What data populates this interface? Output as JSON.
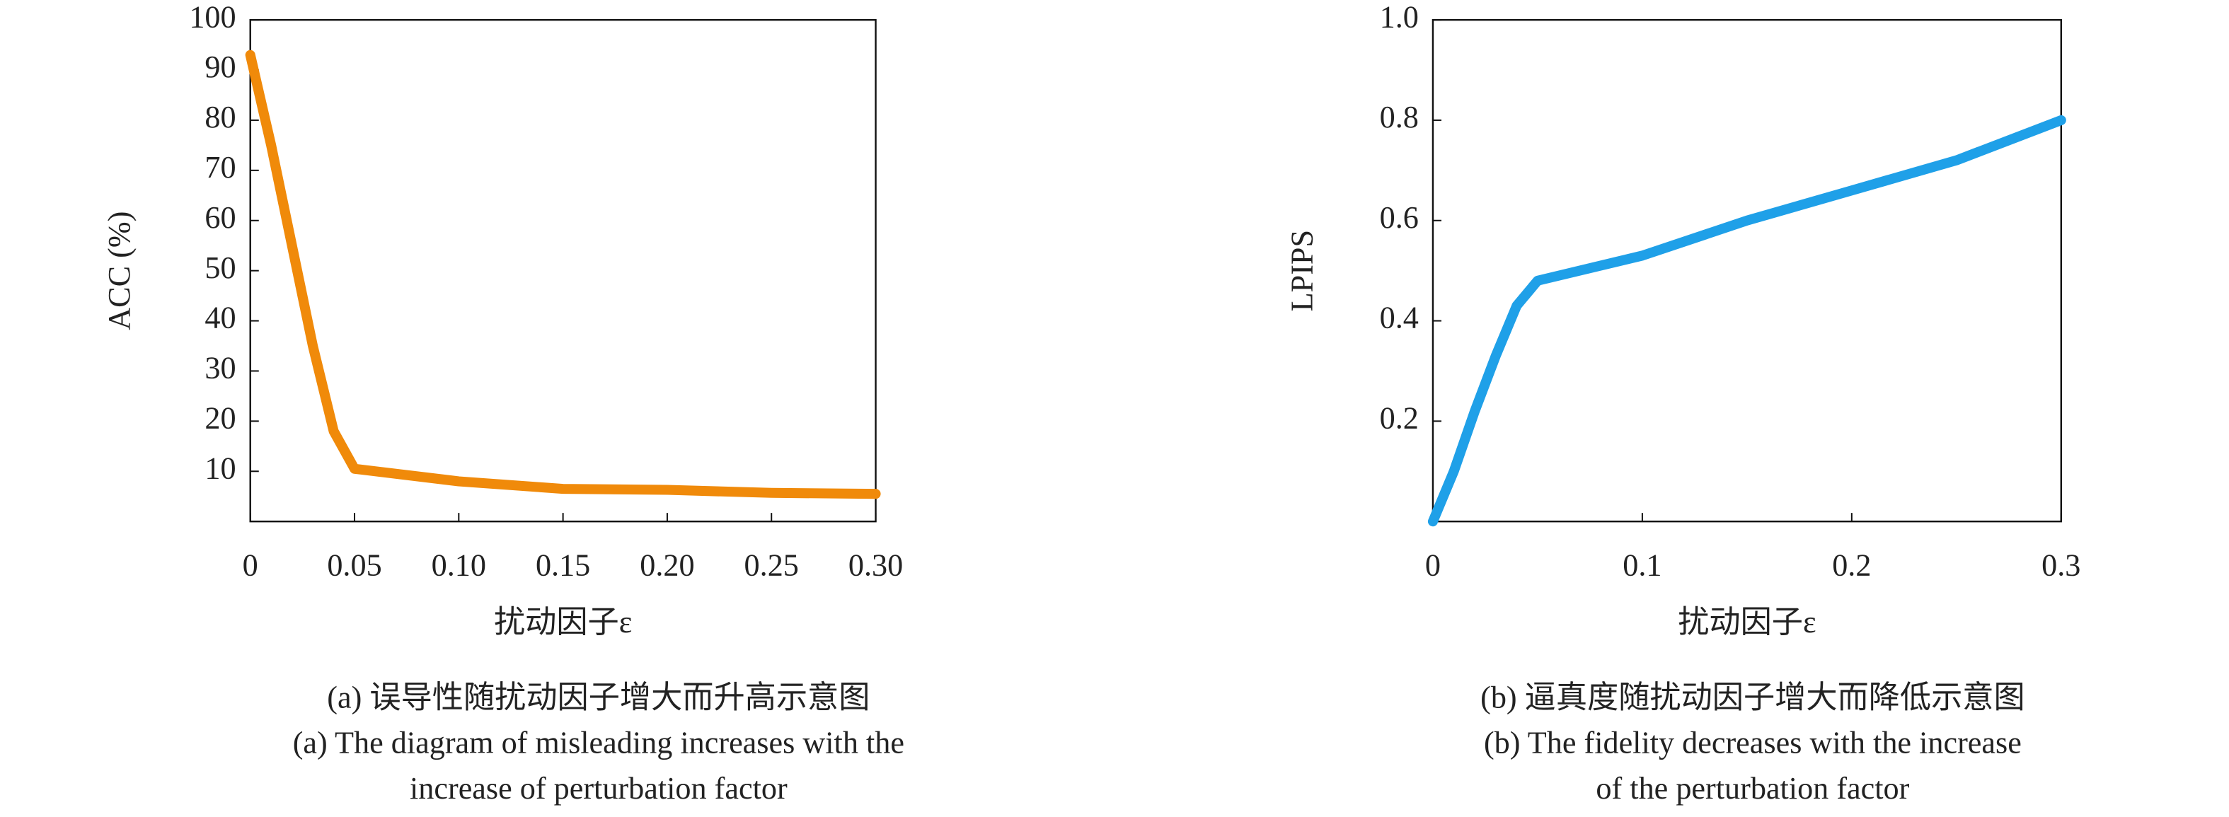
{
  "chart_data": [
    {
      "type": "line",
      "ylabel": "ACC (%)",
      "xlabel": "扰动因子ε",
      "caption": [
        "(a) 误导性随扰动因子增大而升高示意图",
        "(a) The diagram of misleading increases with the",
        "increase of perturbation factor"
      ],
      "x": [
        0,
        0.01,
        0.02,
        0.03,
        0.04,
        0.05,
        0.1,
        0.15,
        0.2,
        0.25,
        0.3
      ],
      "series": [
        {
          "color": "#f08a0a",
          "values": [
            93,
            75,
            55,
            35,
            18,
            10.5,
            8,
            6.5,
            6.3,
            5.7,
            5.5
          ]
        }
      ],
      "xlim": [
        0,
        0.3
      ],
      "xticks": [
        0,
        0.05,
        {
          "value": 0.1,
          "label": "0.10"
        },
        0.15,
        {
          "value": 0.2,
          "label": "0.20"
        },
        0.25,
        {
          "value": 0.3,
          "label": "0.30"
        }
      ],
      "ylim": [
        0,
        100
      ],
      "yticks": [
        10,
        20,
        30,
        40,
        50,
        60,
        70,
        80,
        90,
        100
      ]
    },
    {
      "type": "line",
      "ylabel": "LPIPS",
      "xlabel": "扰动因子ε",
      "caption": [
        "(b) 逼真度随扰动因子增大而降低示意图",
        "(b) The fidelity decreases with the increase",
        "of the perturbation factor"
      ],
      "x": [
        0,
        0.01,
        0.02,
        0.03,
        0.04,
        0.05,
        0.1,
        0.15,
        0.2,
        0.25,
        0.3
      ],
      "series": [
        {
          "color": "#1fa0e8",
          "values": [
            0,
            0.1,
            0.22,
            0.33,
            0.43,
            0.48,
            0.53,
            0.6,
            0.66,
            0.72,
            0.8
          ]
        }
      ],
      "xlim": [
        0,
        0.3
      ],
      "xticks": [
        0,
        0.1,
        0.2,
        0.3
      ],
      "ylim": [
        0,
        1
      ],
      "yticks": [
        0.2,
        0.4,
        0.6,
        0.8,
        {
          "value": 1,
          "label": "1.0"
        }
      ]
    }
  ]
}
